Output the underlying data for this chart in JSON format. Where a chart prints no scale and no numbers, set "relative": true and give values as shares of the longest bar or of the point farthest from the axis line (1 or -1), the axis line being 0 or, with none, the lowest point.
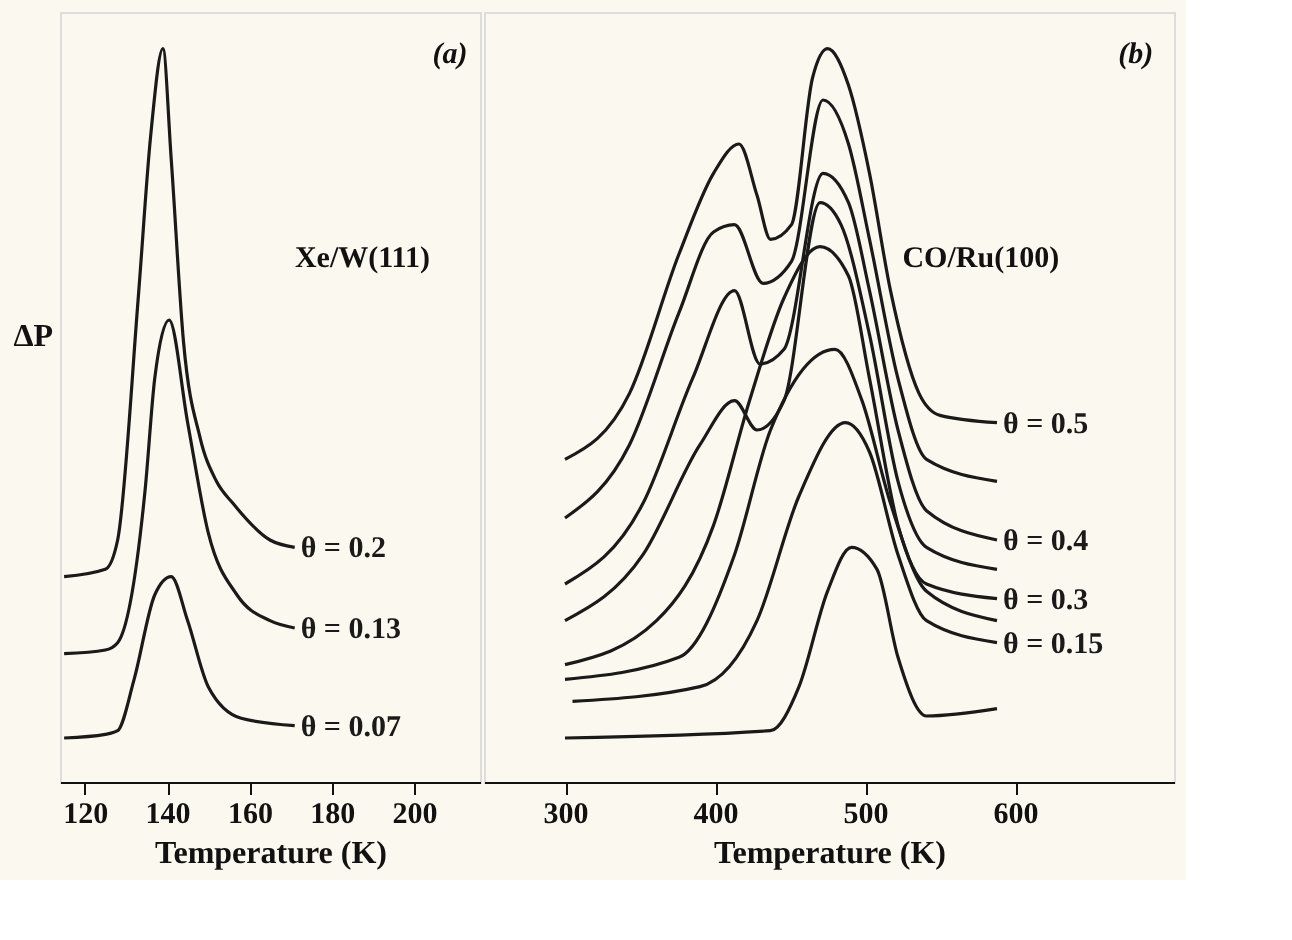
{
  "chart_data": [
    {
      "type": "line",
      "relative": true,
      "xlabel": "Temperature (K)",
      "ylabel": "ΔP",
      "xlim": [
        114,
        216
      ],
      "xticks": [
        120,
        140,
        160,
        180,
        200
      ],
      "grid": false,
      "marker": "none",
      "line_style": "solid",
      "tick_labels": "x",
      "annotations": [
        "(a)",
        "Xe/W(111)"
      ],
      "series": [
        {
          "name": "θ = 0.2",
          "color": "#1a1a1a",
          "x": [
            115,
            125,
            128,
            133,
            136,
            139,
            141,
            144,
            148,
            152,
            156,
            165,
            171
          ],
          "values": [
            0.28,
            0.29,
            0.33,
            0.66,
            0.88,
            1.0,
            0.85,
            0.6,
            0.47,
            0.41,
            0.38,
            0.33,
            0.32
          ]
        },
        {
          "name": "θ = 0.13",
          "color": "#1a1a1a",
          "x": [
            115,
            125,
            128,
            134.7,
            137,
            140.5,
            145,
            150,
            157,
            165,
            171
          ],
          "values": [
            0.175,
            0.18,
            0.19,
            0.4,
            0.55,
            0.63,
            0.49,
            0.34,
            0.255,
            0.22,
            0.21
          ]
        },
        {
          "name": "θ = 0.07",
          "color": "#1a1a1a",
          "x": [
            115,
            125,
            128,
            132,
            137,
            141,
            145,
            150,
            158,
            171
          ],
          "values": [
            0.06,
            0.065,
            0.07,
            0.14,
            0.255,
            0.28,
            0.22,
            0.13,
            0.087,
            0.077
          ]
        }
      ]
    },
    {
      "type": "line",
      "relative": true,
      "xlabel": "Temperature (K)",
      "xlim": [
        246,
        706
      ],
      "xticks": [
        300,
        400,
        500,
        600
      ],
      "grid": false,
      "marker": "none",
      "line_style": "solid",
      "tick_labels": "x",
      "annotations": [
        "(b)",
        "CO/Ru(100)"
      ],
      "series": [
        {
          "name": "θ = 0.5",
          "color": "#1a1a1a",
          "x": [
            300,
            343,
            376,
            399,
            416,
            428,
            437,
            451,
            465,
            475,
            489,
            503,
            517,
            536,
            550,
            588
          ],
          "values": [
            0.44,
            0.53,
            0.72,
            0.83,
            0.87,
            0.8,
            0.74,
            0.76,
            0.96,
            1.0,
            0.95,
            0.83,
            0.67,
            0.53,
            0.5,
            0.49
          ]
        },
        {
          "color": "#1a1a1a",
          "x": [
            300,
            343,
            376,
            399,
            413,
            432,
            451,
            472,
            489,
            503,
            522,
            541,
            588
          ],
          "values": [
            0.36,
            0.46,
            0.64,
            0.75,
            0.76,
            0.68,
            0.71,
            0.93,
            0.87,
            0.74,
            0.55,
            0.44,
            0.41
          ]
        },
        {
          "name": "θ = 0.4",
          "color": "#1a1a1a",
          "x": [
            300,
            352,
            385,
            413,
            430,
            446,
            472,
            489,
            503,
            522,
            541,
            588
          ],
          "values": [
            0.27,
            0.38,
            0.55,
            0.67,
            0.57,
            0.59,
            0.83,
            0.79,
            0.67,
            0.48,
            0.37,
            0.33
          ]
        },
        {
          "color": "#1a1a1a",
          "x": [
            300,
            352,
            390,
            413,
            428,
            446,
            470,
            484,
            503,
            522,
            541,
            588
          ],
          "values": [
            0.22,
            0.31,
            0.46,
            0.52,
            0.48,
            0.52,
            0.79,
            0.76,
            0.61,
            0.41,
            0.32,
            0.29
          ]
        },
        {
          "name": "θ = 0.3",
          "color": "#1a1a1a",
          "x": [
            300,
            361,
            399,
            423,
            446,
            470,
            489,
            503,
            522,
            541,
            588
          ],
          "values": [
            0.16,
            0.22,
            0.35,
            0.52,
            0.66,
            0.73,
            0.69,
            0.55,
            0.35,
            0.27,
            0.25
          ]
        },
        {
          "color": "#1a1a1a",
          "x": [
            300,
            376,
            413,
            437,
            480,
            498,
            517,
            541,
            588
          ],
          "values": [
            0.14,
            0.17,
            0.31,
            0.48,
            0.59,
            0.52,
            0.38,
            0.26,
            0.22
          ]
        },
        {
          "name": "θ = 0.15",
          "color": "#1a1a1a",
          "x": [
            305,
            390,
            428,
            456,
            487,
            503,
            522,
            541,
            588
          ],
          "values": [
            0.11,
            0.13,
            0.22,
            0.39,
            0.49,
            0.45,
            0.31,
            0.22,
            0.19
          ]
        },
        {
          "color": "#1a1a1a",
          "x": [
            300,
            437,
            456,
            475,
            491,
            508,
            522,
            541,
            588
          ],
          "values": [
            0.06,
            0.07,
            0.13,
            0.26,
            0.32,
            0.29,
            0.17,
            0.09,
            0.1
          ]
        }
      ]
    }
  ]
}
